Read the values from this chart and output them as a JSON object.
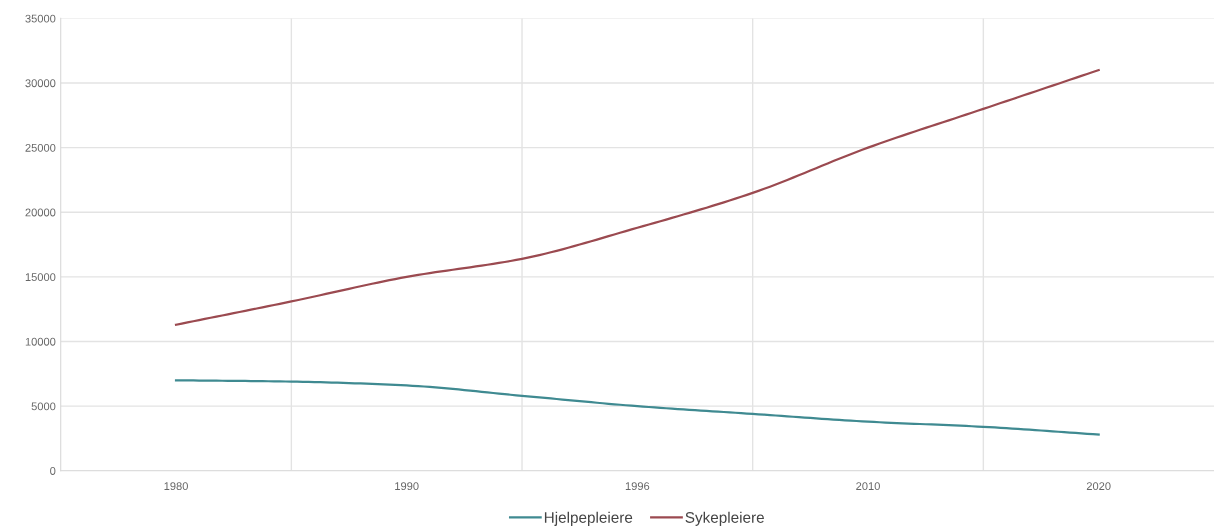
{
  "chart_data": {
    "type": "line",
    "categories": [
      "1980",
      null,
      "1990",
      null,
      "1996",
      null,
      "2010",
      null,
      "2020"
    ],
    "series": [
      {
        "name": "Hjelpepleiere",
        "color": "#3f8a91",
        "values": [
          7000,
          6900,
          6600,
          5800,
          5000,
          4400,
          3800,
          3400,
          2800
        ]
      },
      {
        "name": "Sykepleiere",
        "color": "#9b4a50",
        "values": [
          11300,
          13100,
          15000,
          16400,
          18800,
          21500,
          25000,
          28000,
          31000
        ]
      }
    ],
    "ylim": [
      0,
      35000
    ],
    "yticks": [
      0,
      5000,
      10000,
      15000,
      20000,
      25000,
      30000,
      35000
    ],
    "grid": true,
    "legend": "bottom",
    "marker": "none",
    "line_style": "solid"
  }
}
